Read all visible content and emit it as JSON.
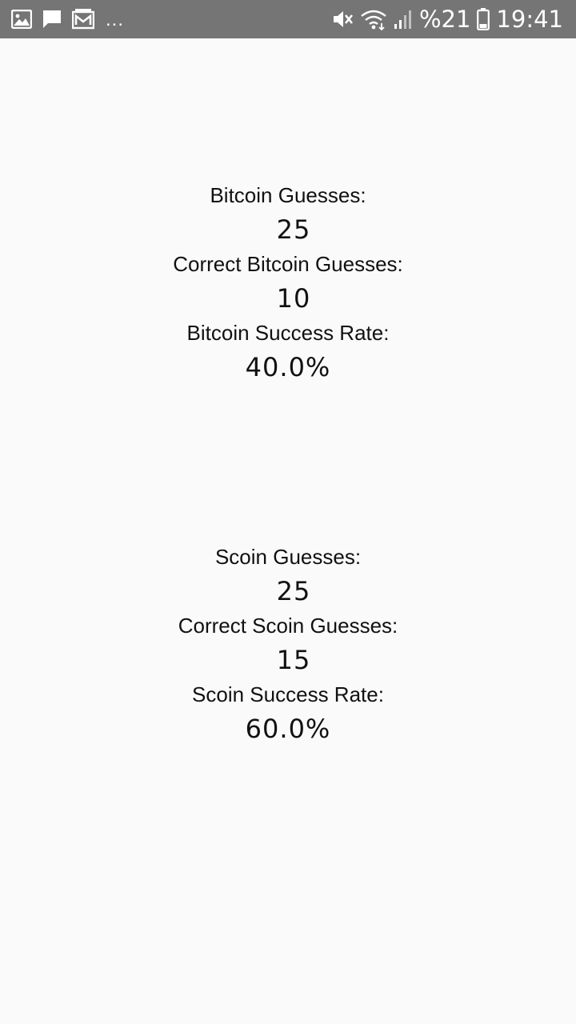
{
  "status_bar": {
    "more_indicator": "...",
    "battery_percent": "%21",
    "time": "19:41",
    "icons": [
      "image-icon",
      "message-icon",
      "mail-icon",
      "mute-icon",
      "wifi-icon",
      "signal-icon",
      "battery-icon"
    ]
  },
  "bitcoin": {
    "guesses_label": "Bitcoin Guesses:",
    "guesses_value": "25",
    "correct_label": "Correct Bitcoin Guesses:",
    "correct_value": "10",
    "rate_label": "Bitcoin Success Rate:",
    "rate_value": "40.0%"
  },
  "scoin": {
    "guesses_label": "Scoin Guesses:",
    "guesses_value": "25",
    "correct_label": "Correct Scoin Guesses:",
    "correct_value": "15",
    "rate_label": "Scoin Success Rate:",
    "rate_value": "60.0%"
  }
}
